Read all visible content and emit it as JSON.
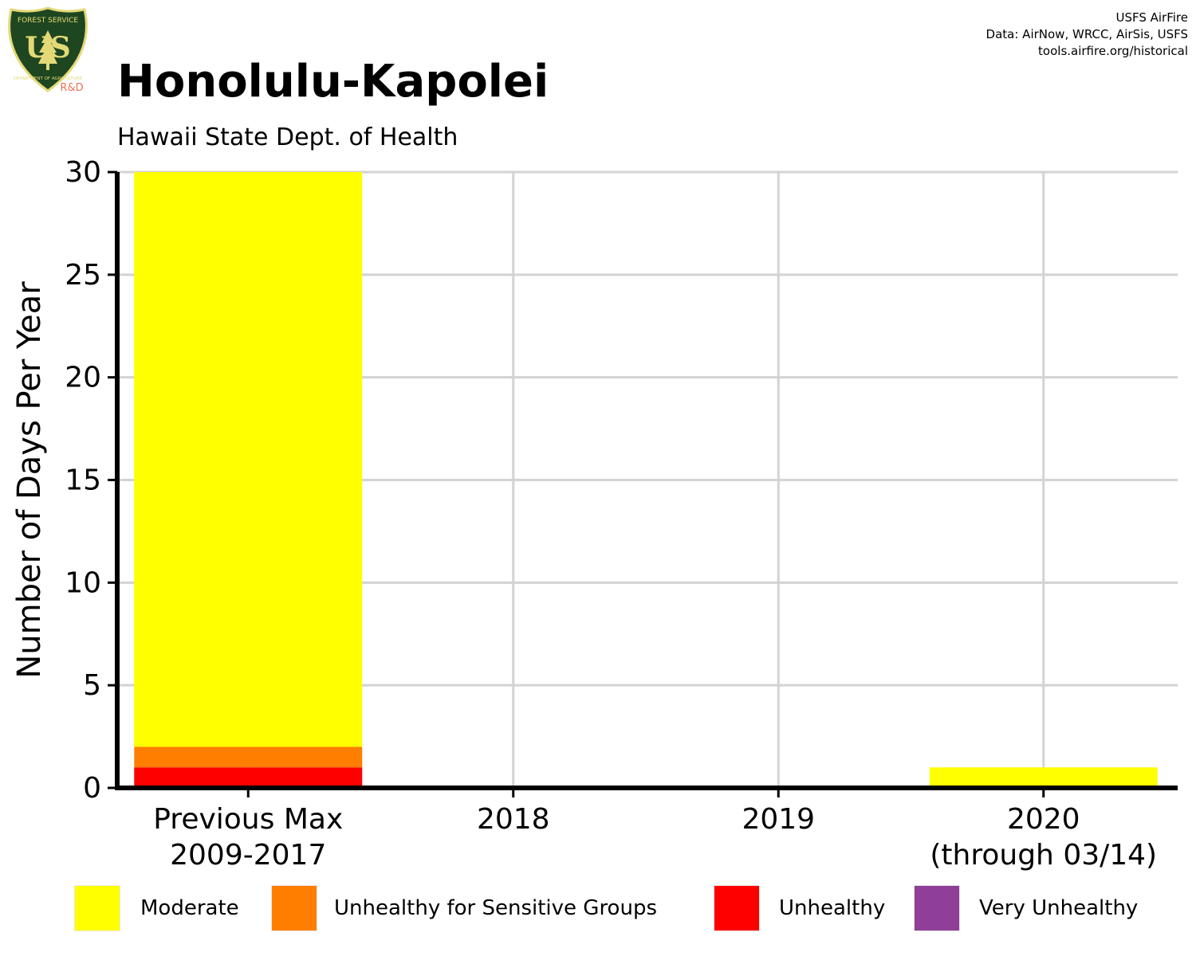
{
  "header": {
    "title": "Honolulu-Kapolei",
    "subtitle": "Hawaii State Dept. of Health",
    "credits": [
      "USFS AirFire",
      "Data: AirNow, WRCC, AirSis, USFS",
      "tools.airfire.org/historical"
    ]
  },
  "logo": {
    "text_top": "FOREST SERVICE",
    "text_letters": "US",
    "text_bottom": "DEPARTMENT OF AGRICULTURE",
    "badge": "R&D",
    "colors": {
      "shield": "#1e4620",
      "trim": "#e3d977",
      "badge": "#e8735a"
    }
  },
  "chart_data": {
    "type": "bar",
    "stacked": true,
    "ylabel": "Number of Days Per Year",
    "ylim": [
      0,
      30
    ],
    "yticks": [
      0,
      5,
      10,
      15,
      20,
      25,
      30
    ],
    "grid": true,
    "legend_position": "bottom",
    "categories": [
      [
        "Previous Max",
        "2009-2017"
      ],
      [
        "2018"
      ],
      [
        "2019"
      ],
      [
        "2020",
        "(through 03/14)"
      ]
    ],
    "series": [
      {
        "name": "Unhealthy",
        "color": "#ff0000",
        "values": [
          1,
          0,
          0,
          0
        ]
      },
      {
        "name": "Unhealthy for Sensitive Groups",
        "color": "#ff7e00",
        "values": [
          1,
          0,
          0,
          0
        ]
      },
      {
        "name": "Moderate",
        "color": "#ffff00",
        "values": [
          28,
          0,
          0,
          1
        ]
      },
      {
        "name": "Very Unhealthy",
        "color": "#8f3f97",
        "values": [
          0,
          0,
          0,
          0
        ]
      }
    ],
    "legend_order": [
      "Moderate",
      "Unhealthy for Sensitive Groups",
      "Unhealthy",
      "Very Unhealthy"
    ]
  }
}
